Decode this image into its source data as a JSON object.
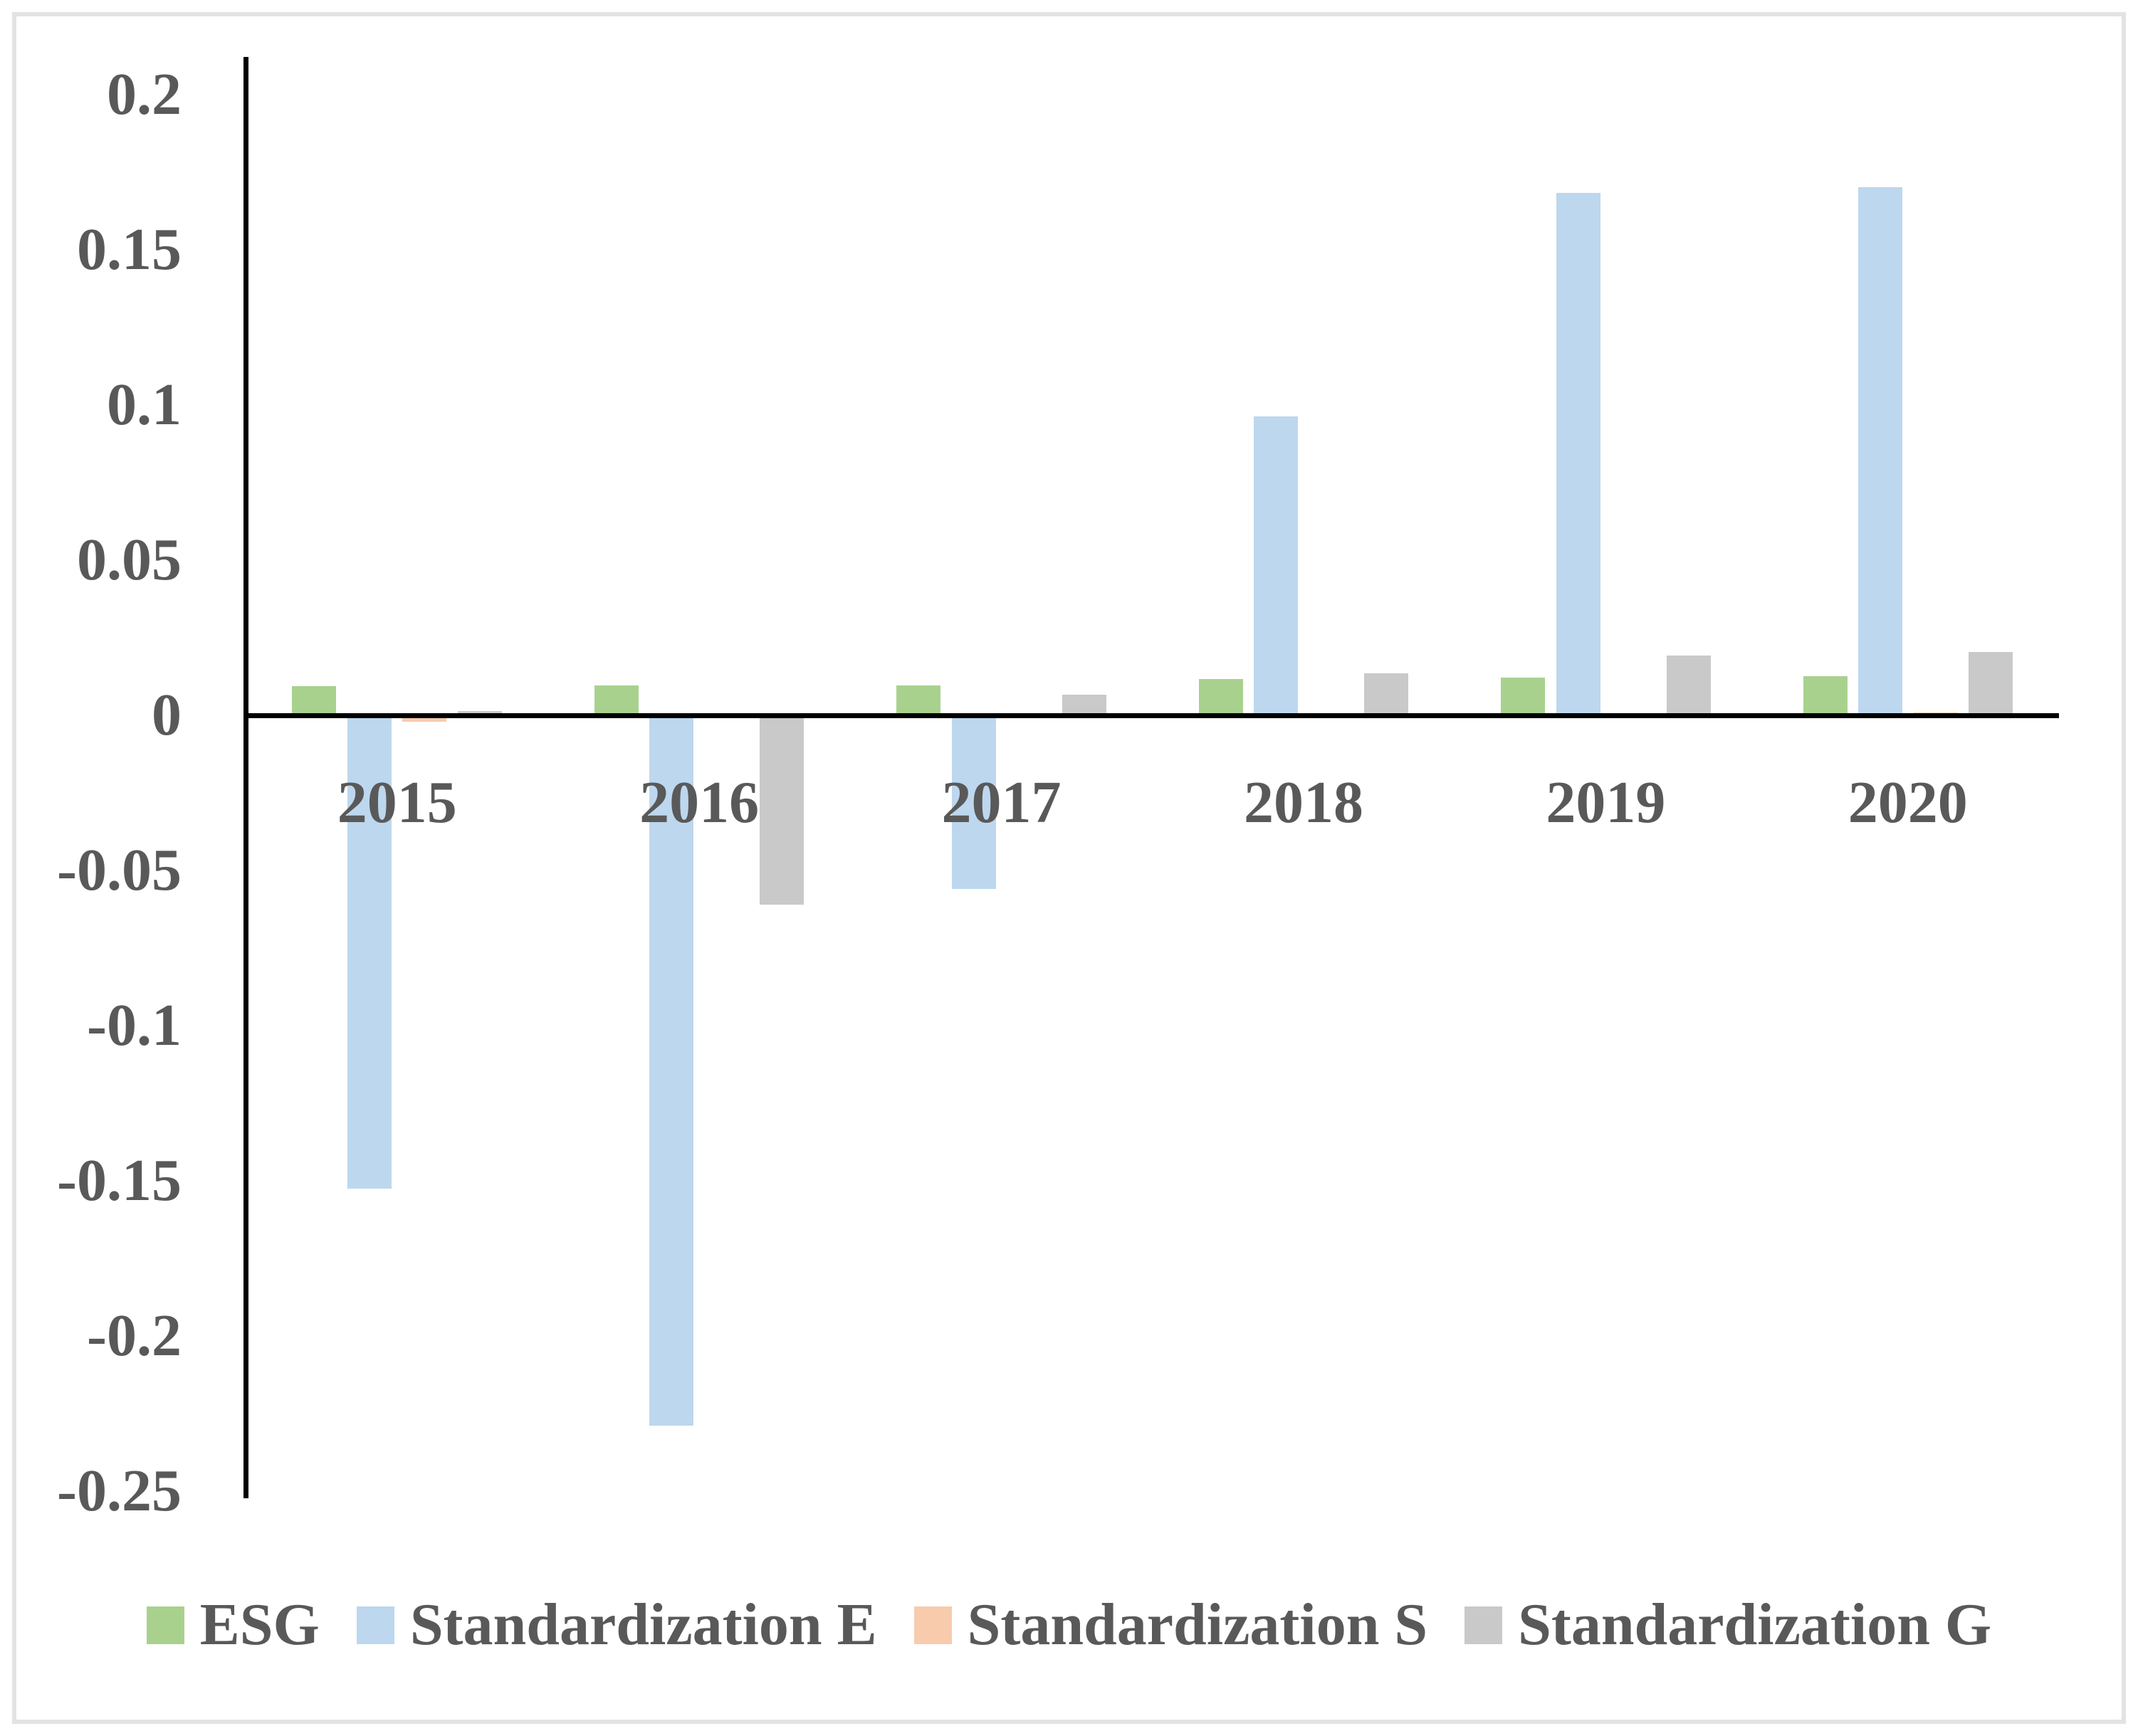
{
  "figure": {
    "background_color": "#ffffff",
    "frame_color": "#e3e3e3",
    "axis_color": "#000000",
    "label_color": "#595959"
  },
  "chart_data": {
    "type": "bar",
    "title": "",
    "xlabel": "",
    "ylabel": "",
    "categories": [
      "2015",
      "2016",
      "2017",
      "2018",
      "2019",
      "2020"
    ],
    "series": [
      {
        "name": "ESG",
        "color": "#a9d18e",
        "values": [
          0.0094,
          0.0096,
          0.0096,
          0.0117,
          0.0122,
          0.0126
        ]
      },
      {
        "name": "Standardization E",
        "color": "#bdd7ee",
        "values": [
          -0.1525,
          -0.229,
          -0.056,
          0.0963,
          0.1683,
          0.1702
        ]
      },
      {
        "name": "Standardization S",
        "color": "#f8cbad",
        "values": [
          -0.002,
          0,
          0,
          0,
          0,
          0.001
        ]
      },
      {
        "name": "Standardization G",
        "color": "#c9c9c9",
        "values": [
          0.0014,
          -0.061,
          0.0066,
          0.0135,
          0.0193,
          0.0204
        ]
      }
    ],
    "ylim": [
      -0.25,
      0.2
    ],
    "yticks": [
      {
        "label": "0.2",
        "value": 0.2
      },
      {
        "label": "0.15",
        "value": 0.15
      },
      {
        "label": "0.1",
        "value": 0.1
      },
      {
        "label": "0.05",
        "value": 0.05
      },
      {
        "label": "0",
        "value": 0
      },
      {
        "label": "-0.05",
        "value": -0.05
      },
      {
        "label": "-0.1",
        "value": -0.1
      },
      {
        "label": "-0.15",
        "value": -0.15
      },
      {
        "label": "-0.2",
        "value": -0.2
      },
      {
        "label": "-0.25",
        "value": -0.25
      }
    ],
    "grid": false,
    "legend_position": "bottom"
  }
}
